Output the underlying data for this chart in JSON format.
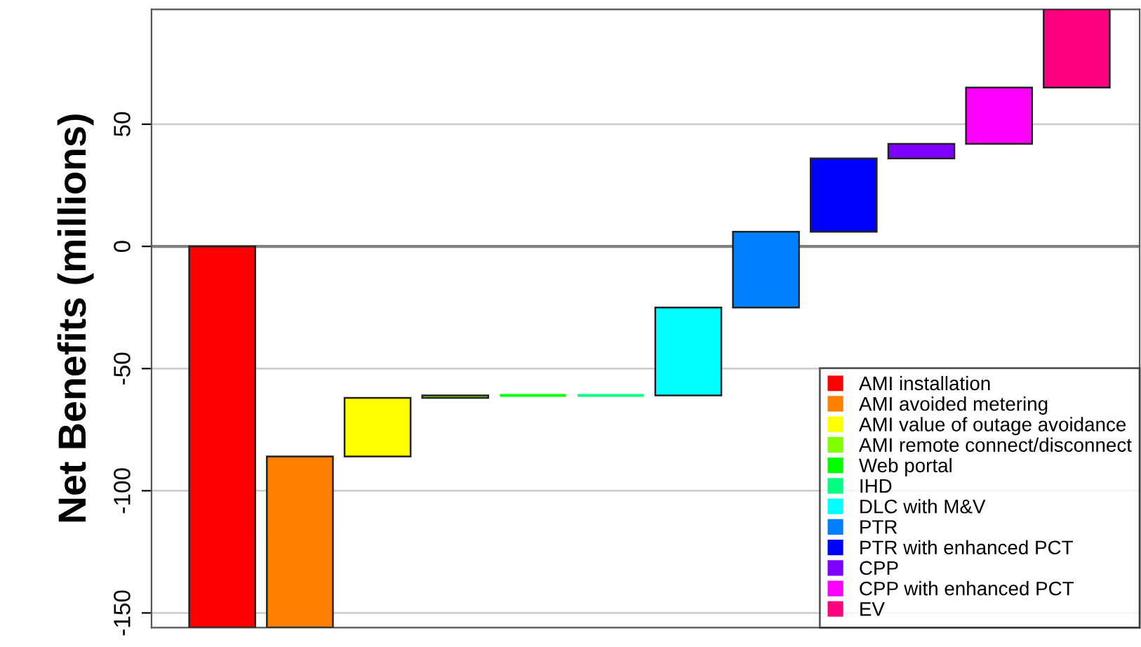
{
  "chart_data": {
    "type": "bar",
    "ylabel": "Net Benefits (millions)",
    "categories": [
      null,
      null,
      null,
      null,
      null,
      null,
      null,
      null,
      null,
      null,
      null,
      null
    ],
    "series": [
      {
        "name": "AMI installation",
        "color": "#ff0000",
        "values": [
          -156,
          null,
          null,
          null,
          null,
          null,
          null,
          null,
          null,
          null,
          null,
          null
        ],
        "base": [
          0,
          null,
          null,
          null,
          null,
          null,
          null,
          null,
          null,
          null,
          null,
          null
        ]
      },
      {
        "name": "AMI avoided metering",
        "color": "#ff8000",
        "values": [
          null,
          70,
          null,
          null,
          null,
          null,
          null,
          null,
          null,
          null,
          null,
          null
        ],
        "base": [
          null,
          -156,
          null,
          null,
          null,
          null,
          null,
          null,
          null,
          null,
          null,
          null
        ]
      },
      {
        "name": "AMI value of outage avoidance",
        "color": "#ffff00",
        "values": [
          null,
          null,
          24,
          null,
          null,
          null,
          null,
          null,
          null,
          null,
          null,
          null
        ],
        "base": [
          null,
          null,
          -86,
          null,
          null,
          null,
          null,
          null,
          null,
          null,
          null,
          null
        ]
      },
      {
        "name": "AMI remote connect/disconnect",
        "color": "#80ff00",
        "values": [
          null,
          null,
          null,
          1,
          null,
          null,
          null,
          null,
          null,
          null,
          null,
          null
        ],
        "base": [
          null,
          null,
          null,
          -62,
          null,
          null,
          null,
          null,
          null,
          null,
          null,
          null
        ]
      },
      {
        "name": "Web portal",
        "color": "#00ff00",
        "values": [
          null,
          null,
          null,
          null,
          0,
          null,
          null,
          null,
          null,
          null,
          null,
          null
        ],
        "base": [
          null,
          null,
          null,
          null,
          -61,
          null,
          null,
          null,
          null,
          null,
          null,
          null
        ]
      },
      {
        "name": "IHD",
        "color": "#00ff80",
        "values": [
          null,
          null,
          null,
          null,
          null,
          0,
          null,
          null,
          null,
          null,
          null,
          null
        ],
        "base": [
          null,
          null,
          null,
          null,
          null,
          -61,
          null,
          null,
          null,
          null,
          null,
          null
        ]
      },
      {
        "name": "DLC with M&V",
        "color": "#00ffff",
        "values": [
          null,
          null,
          null,
          null,
          null,
          null,
          36,
          null,
          null,
          null,
          null,
          null
        ],
        "base": [
          null,
          null,
          null,
          null,
          null,
          null,
          -61,
          null,
          null,
          null,
          null,
          null
        ]
      },
      {
        "name": "PTR",
        "color": "#0080ff",
        "values": [
          null,
          null,
          null,
          null,
          null,
          null,
          null,
          31,
          null,
          null,
          null,
          null
        ],
        "base": [
          null,
          null,
          null,
          null,
          null,
          null,
          null,
          -25,
          null,
          null,
          null,
          null
        ]
      },
      {
        "name": "PTR with enhanced PCT",
        "color": "#0000ff",
        "values": [
          null,
          null,
          null,
          null,
          null,
          null,
          null,
          null,
          30,
          null,
          null,
          null
        ],
        "base": [
          null,
          null,
          null,
          null,
          null,
          null,
          null,
          null,
          6,
          null,
          null,
          null
        ]
      },
      {
        "name": "CPP",
        "color": "#8000ff",
        "values": [
          null,
          null,
          null,
          null,
          null,
          null,
          null,
          null,
          null,
          6,
          null,
          null
        ],
        "base": [
          null,
          null,
          null,
          null,
          null,
          null,
          null,
          null,
          null,
          36,
          null,
          null
        ]
      },
      {
        "name": "CPP with enhanced PCT",
        "color": "#ff00ff",
        "values": [
          null,
          null,
          null,
          null,
          null,
          null,
          null,
          null,
          null,
          null,
          23,
          null
        ],
        "base": [
          null,
          null,
          null,
          null,
          null,
          null,
          null,
          null,
          null,
          null,
          42,
          null
        ]
      },
      {
        "name": "EV",
        "color": "#ff0080",
        "values": [
          null,
          null,
          null,
          null,
          null,
          null,
          null,
          null,
          null,
          null,
          null,
          32
        ],
        "base": [
          null,
          null,
          null,
          null,
          null,
          null,
          null,
          null,
          null,
          null,
          null,
          65
        ]
      }
    ],
    "ylim": [
      -156,
      97
    ],
    "yticks": [
      -150,
      -100,
      -50,
      0,
      50
    ],
    "grid": "y",
    "ref_lines": [
      {
        "axis": "y",
        "value": 0,
        "color": "#808080"
      }
    ],
    "legend": "bottom right",
    "marker": "square"
  }
}
